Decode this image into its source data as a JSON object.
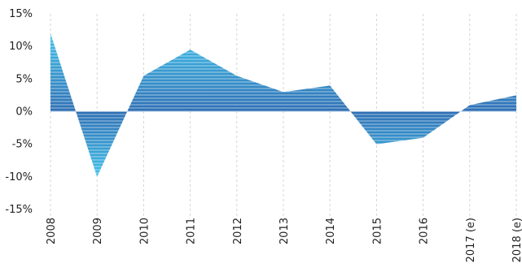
{
  "chart_data": {
    "type": "area",
    "x": [
      "2008",
      "2009",
      "2010",
      "2011",
      "2012",
      "2013",
      "2014",
      "2015",
      "2016",
      "2017 (e)",
      "2018 (e)"
    ],
    "values": [
      12,
      -10,
      5.5,
      9.5,
      5.5,
      3,
      4,
      -5,
      -4,
      1,
      2.5
    ],
    "yticks": [
      "15%",
      "10%",
      "5%",
      "0%",
      "-5%",
      "-10%",
      "-15%"
    ],
    "ytick_values": [
      15,
      10,
      5,
      0,
      -5,
      -10,
      -15
    ],
    "ylim": [
      -15,
      15
    ],
    "title": "",
    "xlabel": "",
    "ylabel": "",
    "grid": "vertical dashed",
    "colors": {
      "positive_top": "#42c2ea",
      "positive_bottom": "#2f6fb4",
      "negative_top": "#2f6fb4",
      "negative_bottom": "#42c2ea",
      "stripe": "#ffffff",
      "grid": "#d4d4d4",
      "text": "#222222"
    }
  }
}
